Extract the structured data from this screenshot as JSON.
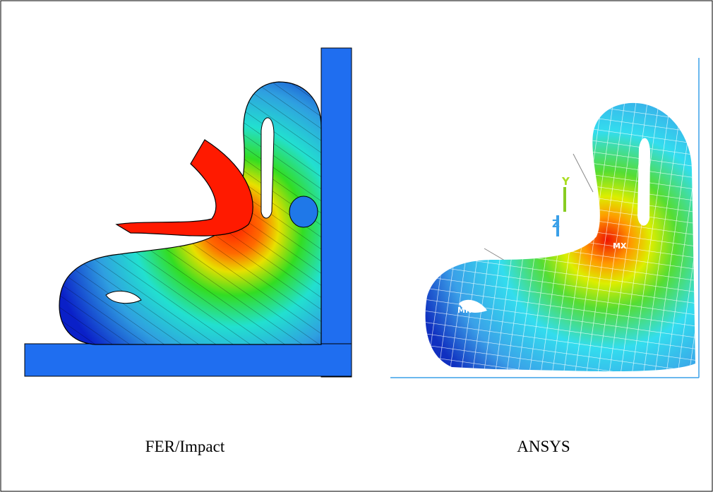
{
  "figure": {
    "panels": [
      {
        "caption": "FER/Impact"
      },
      {
        "caption": "ANSYS",
        "labels": [
          "Y",
          "Z",
          "MN",
          "MX"
        ]
      }
    ]
  }
}
